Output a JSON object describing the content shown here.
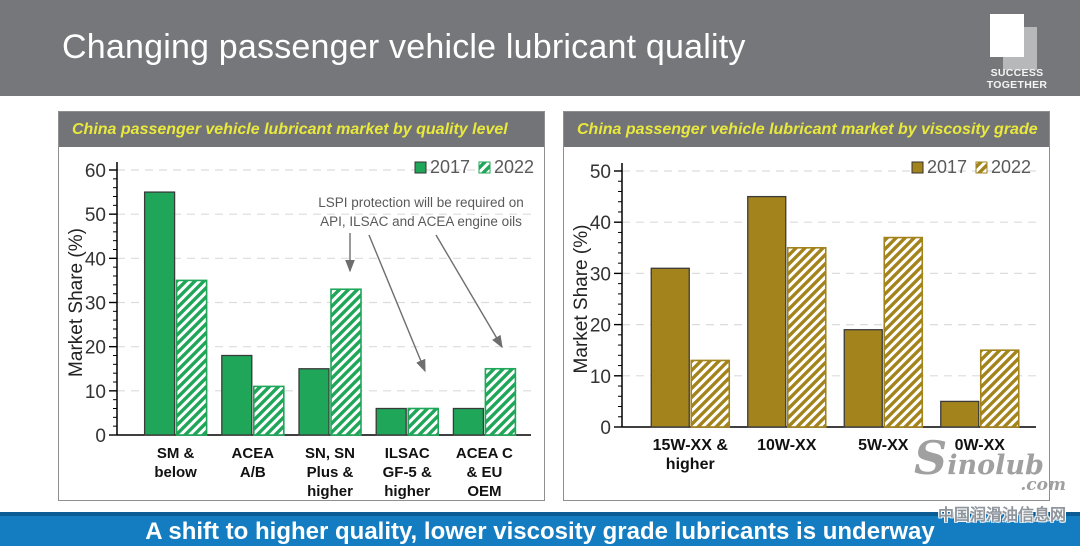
{
  "header": {
    "title": "Changing passenger vehicle lubricant quality",
    "logo": {
      "line1": "SUCCESS",
      "line2": "TOGETHER"
    }
  },
  "colors": {
    "header_gray": "#76777a",
    "panel_gray": "#737477",
    "panel_yellow": "#e9e93d",
    "footer_blue": "#147dc2",
    "footer_edge": "#0b5c94",
    "green": "#1fa659",
    "gold": "#a3831c"
  },
  "chart_data": [
    {
      "type": "bar",
      "panel_title": "China passenger vehicle lubricant market by quality level",
      "ylabel": "Market Share (%)",
      "ylim": [
        0,
        60
      ],
      "ytick_step": 10,
      "minor_tick_step": 2,
      "grid": true,
      "legend_position": "top-right",
      "categories": [
        "SM &\nbelow",
        "ACEA\nA/B",
        "SN, SN\nPlus &\nhigher",
        "ILSAC\nGF-5 &\nhigher",
        "ACEA C\n& EU\nOEM"
      ],
      "series": [
        {
          "name": "2017",
          "style": "solid",
          "color": "#1fa659",
          "values": [
            55,
            18,
            15,
            6,
            6
          ]
        },
        {
          "name": "2022",
          "style": "hatched",
          "color": "#1fa659",
          "values": [
            35,
            11,
            33,
            6,
            15
          ]
        }
      ],
      "annotation": {
        "text_lines": [
          "LSPI protection will be required on",
          "API, ILSAC and ACEA engine oils"
        ],
        "points_to": [
          "SN, SN Plus & higher 2022",
          "ILSAC GF-5 & higher 2022",
          "ACEA C & EU OEM 2022"
        ]
      }
    },
    {
      "type": "bar",
      "panel_title": "China passenger vehicle lubricant market by viscosity grade",
      "ylabel": "Market Share (%)",
      "ylim": [
        0,
        50
      ],
      "ytick_step": 10,
      "minor_tick_step": 2,
      "grid": true,
      "legend_position": "top-right",
      "categories": [
        "15W-XX &\nhigher",
        "10W-XX",
        "5W-XX",
        "0W-XX"
      ],
      "series": [
        {
          "name": "2017",
          "style": "solid",
          "color": "#a3831c",
          "values": [
            31,
            45,
            19,
            5
          ]
        },
        {
          "name": "2022",
          "style": "hatched",
          "color": "#a3831c",
          "values": [
            13,
            35,
            37,
            15
          ]
        }
      ]
    }
  ],
  "footer": {
    "message": "A shift to higher quality, lower viscosity grade lubricants is underway"
  },
  "watermark": {
    "brand": "Sinolub",
    "brand_suffix": ".com",
    "caption": "中国润滑油信息网"
  }
}
